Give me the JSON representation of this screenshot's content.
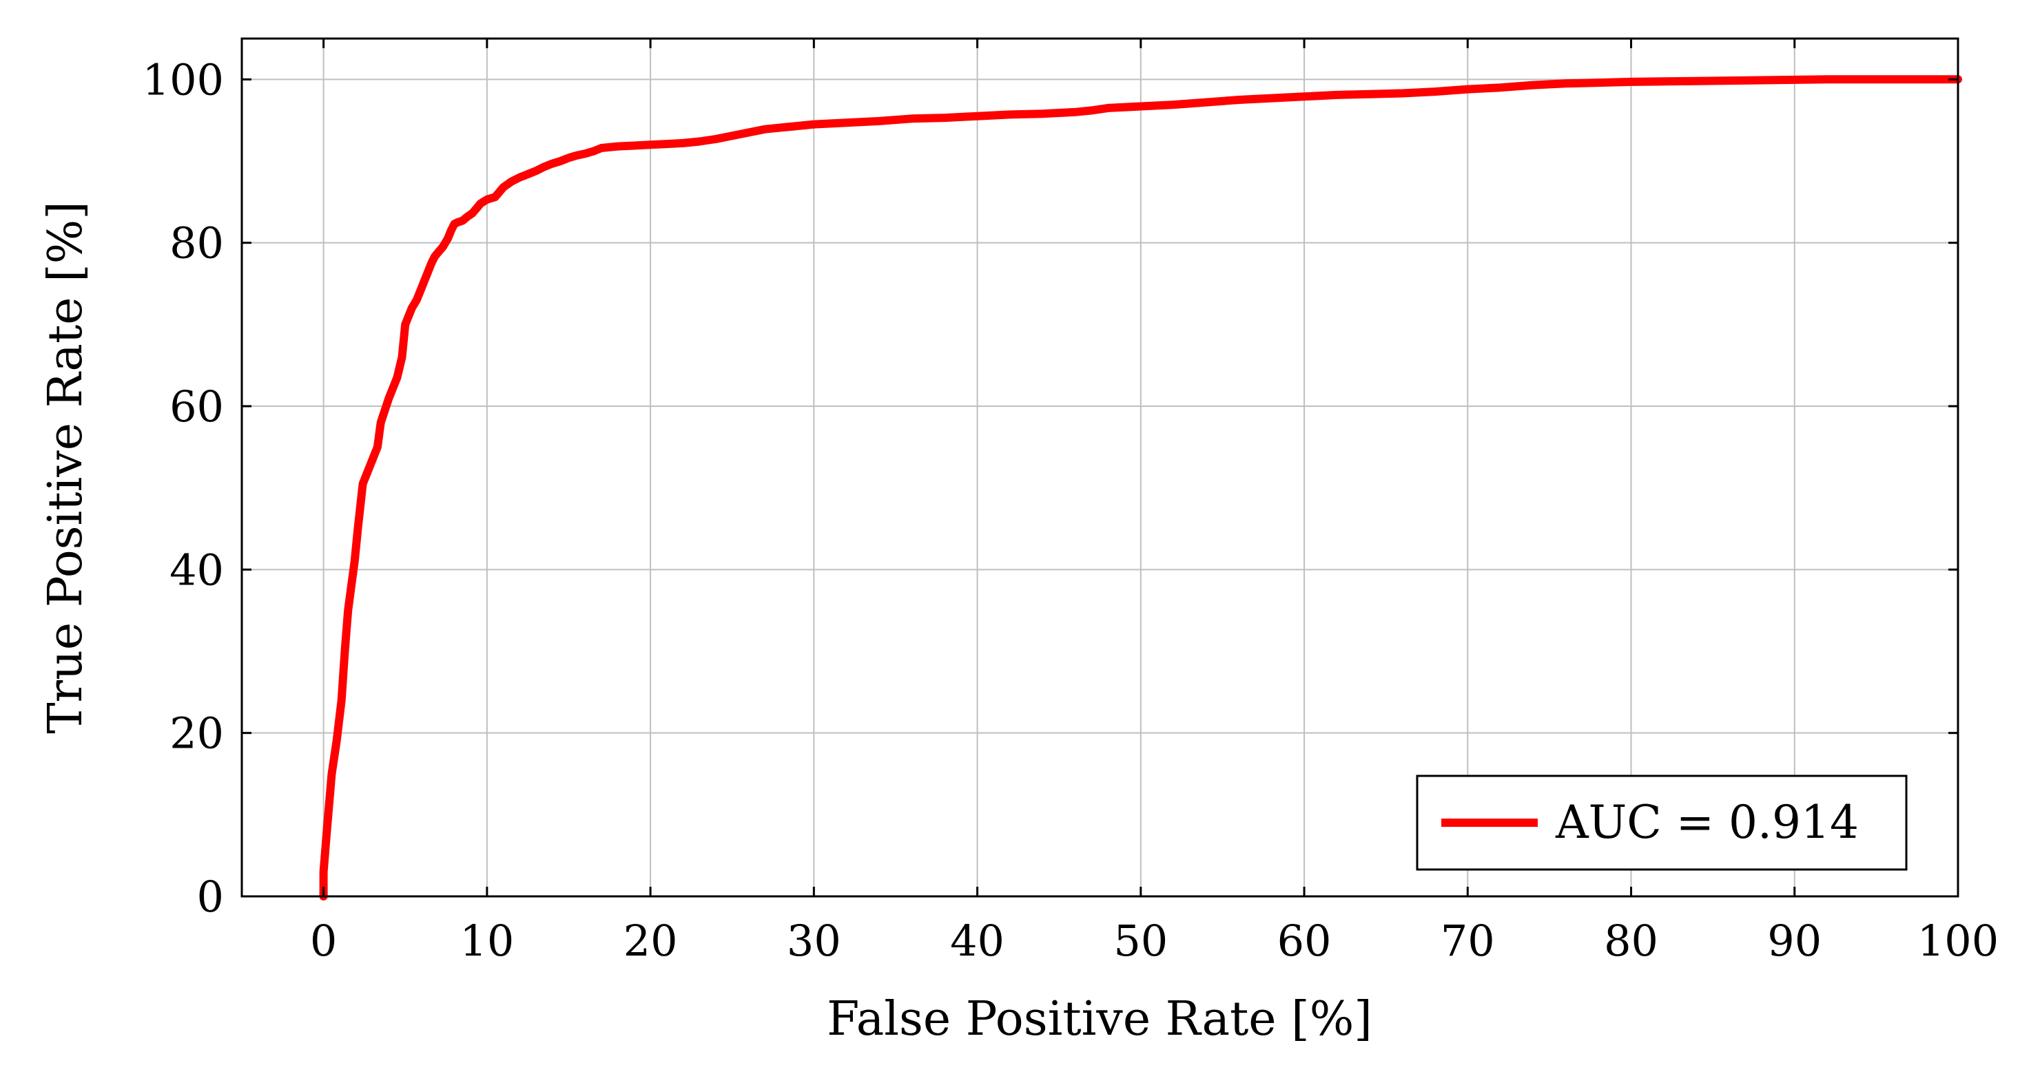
{
  "chart_data": {
    "type": "line",
    "title": "",
    "xlabel": "False Positive Rate [%]",
    "ylabel": "True Positive Rate [%]",
    "xlim": [
      -5,
      100
    ],
    "ylim": [
      0,
      105
    ],
    "xticks": [
      0,
      10,
      20,
      30,
      40,
      50,
      60,
      70,
      80,
      90,
      100
    ],
    "yticks": [
      0,
      20,
      40,
      60,
      80,
      100
    ],
    "xtick_labels": [
      "0",
      "10",
      "20",
      "30",
      "40",
      "50",
      "60",
      "70",
      "80",
      "90",
      "100"
    ],
    "ytick_labels": [
      "0",
      "20",
      "40",
      "60",
      "80",
      "100"
    ],
    "grid": true,
    "legend_position": "bottom-right",
    "series": [
      {
        "name": "AUC = 0.914",
        "color": "#ff0000",
        "x": [
          0,
          0,
          0.2,
          0.5,
          0.8,
          1.1,
          1.3,
          1.5,
          1.7,
          1.9,
          2.1,
          2.4,
          2.7,
          3.0,
          3.3,
          3.5,
          4.0,
          4.5,
          4.8,
          5.0,
          5.4,
          5.7,
          6.0,
          6.3,
          6.6,
          6.8,
          7.0,
          7.3,
          7.6,
          7.8,
          8.0,
          8.2,
          8.5,
          8.8,
          9.1,
          9.4,
          9.6,
          10.0,
          10.5,
          11.0,
          11.5,
          12.0,
          12.5,
          13.0,
          13.5,
          14.0,
          14.5,
          15.0,
          15.5,
          16.0,
          16.5,
          17.0,
          18.0,
          19.0,
          20.0,
          21.0,
          22.0,
          23.0,
          24.0,
          25.0,
          26.0,
          27.0,
          28.0,
          29.0,
          30.0,
          32.0,
          34.0,
          36.0,
          38.0,
          40.0,
          42.0,
          44.0,
          45.0,
          46.0,
          47.0,
          48.0,
          50.0,
          52.0,
          54.0,
          56.0,
          58.0,
          60.0,
          62.0,
          64.0,
          66.0,
          68.0,
          70.0,
          72.0,
          74.0,
          76.0,
          78.0,
          80.0,
          82.0,
          84.0,
          86.0,
          88.0,
          90.0,
          92.0,
          94.0,
          96.0,
          98.0,
          100.0
        ],
        "y": [
          0,
          3,
          8,
          15,
          19,
          24,
          30,
          35,
          38,
          41,
          45,
          50.5,
          52,
          53.5,
          55,
          58,
          61,
          63.5,
          66,
          70,
          72,
          73,
          74.5,
          76,
          77.5,
          78.3,
          78.8,
          79.5,
          80.5,
          81.5,
          82.3,
          82.5,
          82.7,
          83.2,
          83.6,
          84.3,
          84.8,
          85.3,
          85.6,
          86.8,
          87.5,
          88.0,
          88.4,
          88.8,
          89.3,
          89.7,
          90.0,
          90.4,
          90.7,
          90.9,
          91.2,
          91.6,
          91.8,
          91.9,
          92.0,
          92.1,
          92.2,
          92.4,
          92.7,
          93.1,
          93.5,
          93.9,
          94.1,
          94.3,
          94.5,
          94.7,
          94.9,
          95.2,
          95.3,
          95.5,
          95.7,
          95.8,
          95.9,
          96.0,
          96.2,
          96.5,
          96.7,
          96.9,
          97.2,
          97.5,
          97.7,
          97.9,
          98.1,
          98.2,
          98.3,
          98.5,
          98.8,
          99.0,
          99.3,
          99.5,
          99.6,
          99.7,
          99.75,
          99.8,
          99.85,
          99.9,
          99.95,
          100.0,
          100.0,
          100.0,
          100.0,
          100.0
        ]
      }
    ]
  }
}
